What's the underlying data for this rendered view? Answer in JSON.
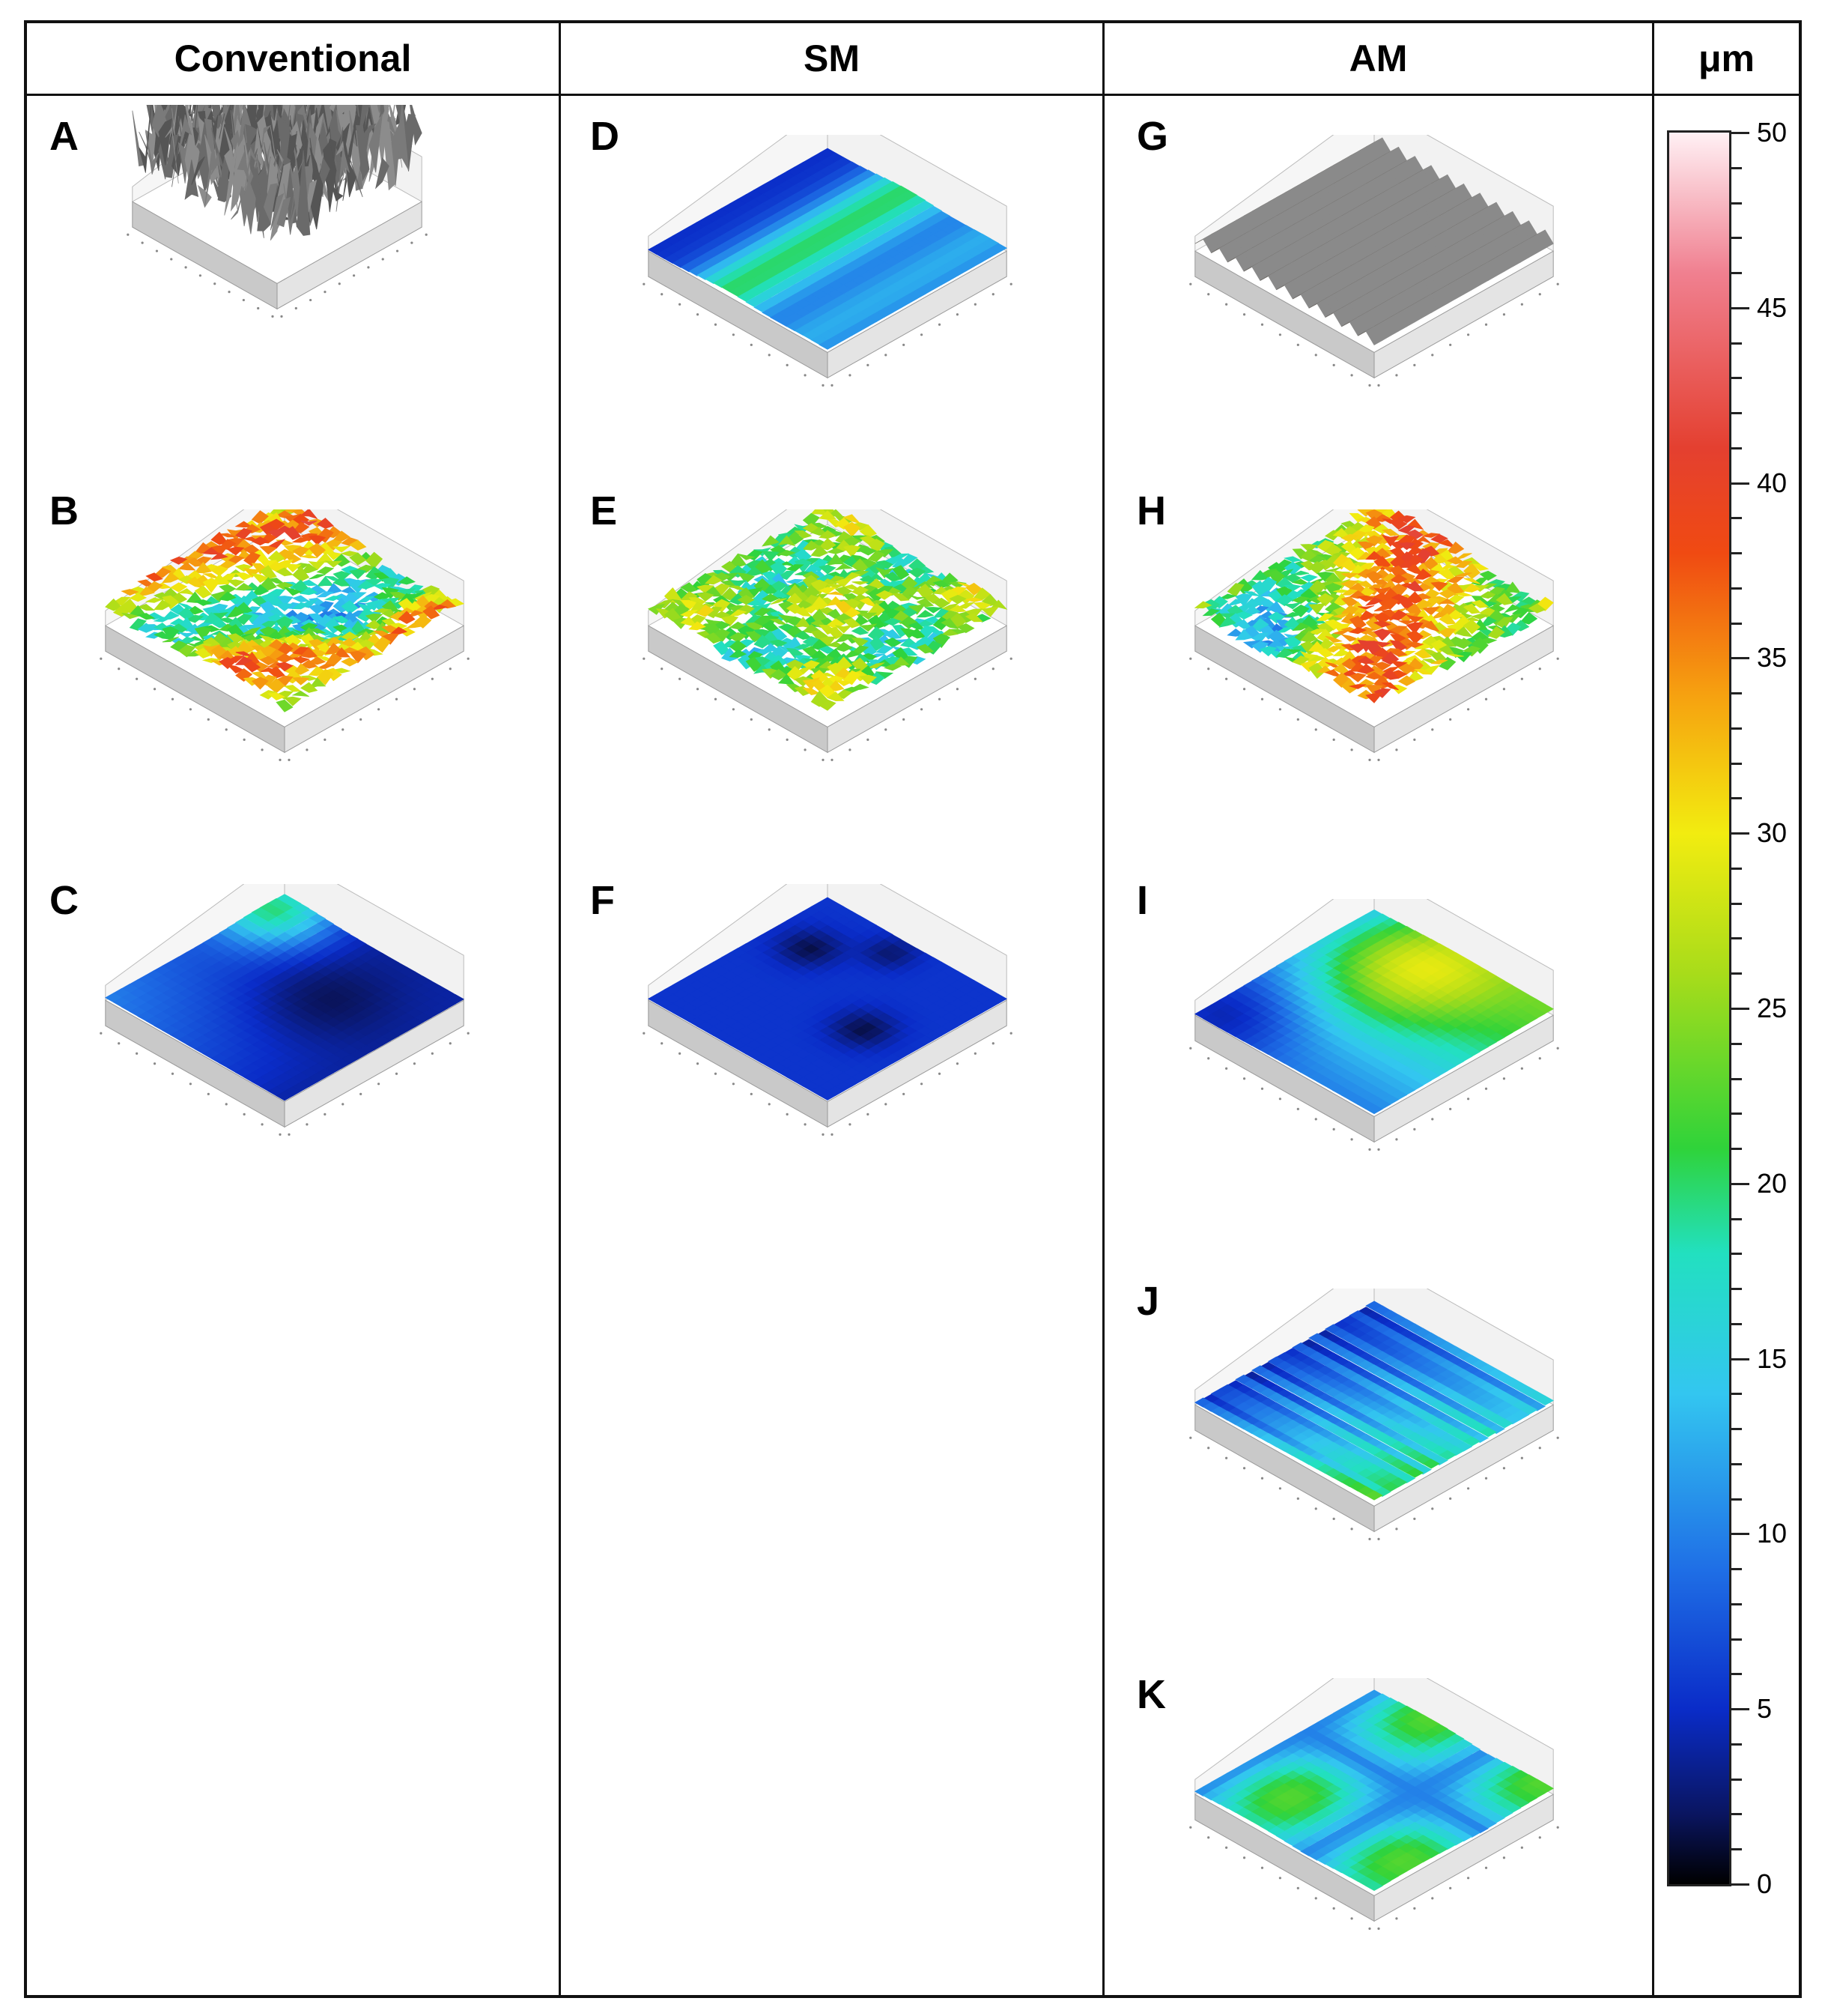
{
  "headers": {
    "col1": "Conventional",
    "col2": "SM",
    "col3": "AM",
    "col4": "μm"
  },
  "panels": [
    {
      "id": "A",
      "label": "A",
      "style": "gray-rough"
    },
    {
      "id": "B",
      "label": "B",
      "style": "rough-color"
    },
    {
      "id": "C",
      "label": "C",
      "style": "smooth-blue"
    },
    {
      "id": "D",
      "label": "D",
      "style": "blue-band"
    },
    {
      "id": "E",
      "label": "E",
      "style": "rough-green"
    },
    {
      "id": "F",
      "label": "F",
      "style": "smooth-blue-pits"
    },
    {
      "id": "G",
      "label": "G",
      "style": "gray-ridges"
    },
    {
      "id": "H",
      "label": "H",
      "style": "rough-red"
    },
    {
      "id": "I",
      "label": "I",
      "style": "green-blue"
    },
    {
      "id": "J",
      "label": "J",
      "style": "striped-blue"
    },
    {
      "id": "K",
      "label": "K",
      "style": "blue-green-mix"
    }
  ],
  "colorbar": {
    "unit": "μm",
    "min": 0,
    "max": 50,
    "ticks": [
      "50",
      "45",
      "40",
      "35",
      "30",
      "25",
      "20",
      "15",
      "10",
      "5",
      "0"
    ],
    "colors": [
      "#000000",
      "#0a2cc8",
      "#33c6f0",
      "#2fd33a",
      "#f2ec10",
      "#f04a12",
      "#fff0f4"
    ]
  }
}
